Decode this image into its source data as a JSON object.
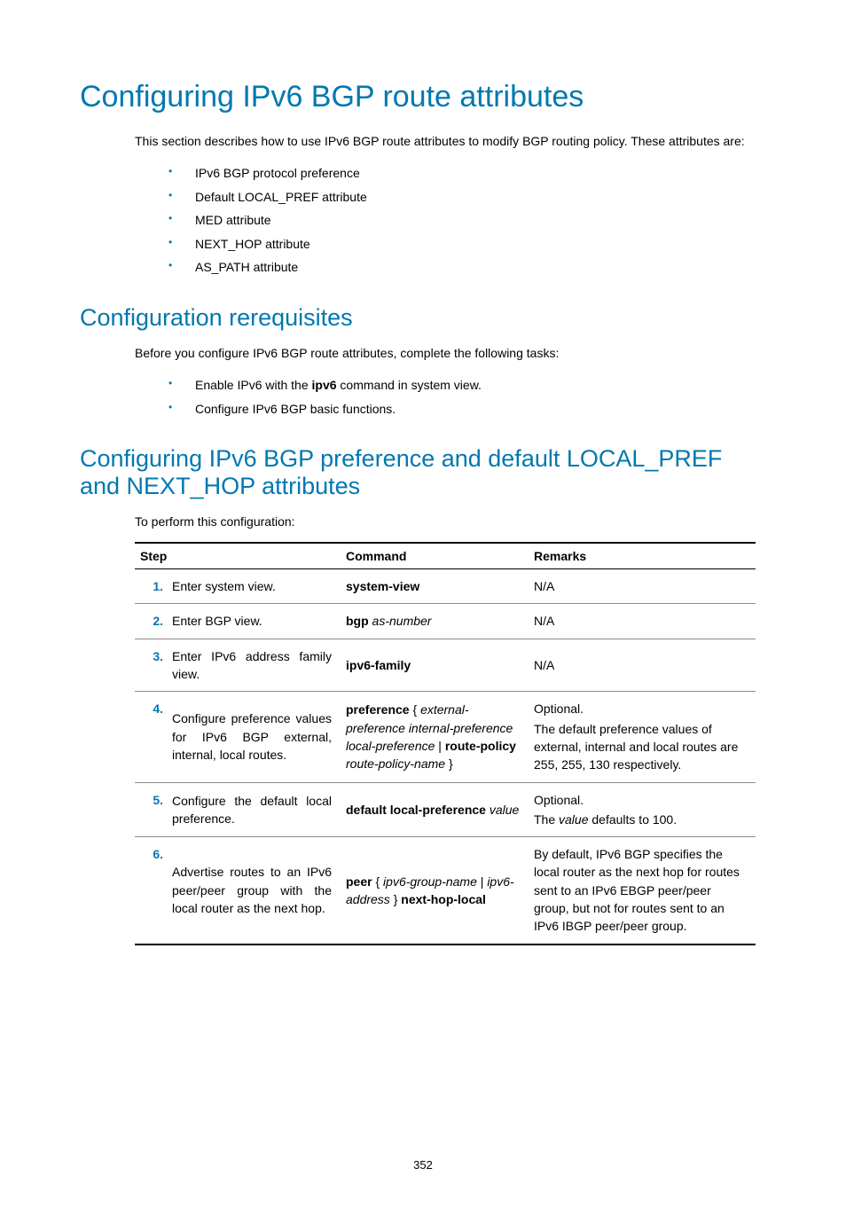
{
  "h1": "Configuring IPv6 BGP route attributes",
  "intro": "This section describes how to use IPv6 BGP route attributes to modify BGP routing policy. These attributes are:",
  "attrs": {
    "b1": "IPv6 BGP protocol preference",
    "b2": "Default LOCAL_PREF attribute",
    "b3": "MED attribute",
    "b4": "NEXT_HOP attribute",
    "b5": "AS_PATH attribute"
  },
  "h2_prereq": "Configuration rerequisites",
  "prereq_intro": "Before you configure IPv6 BGP route attributes, complete the following tasks:",
  "prereq": {
    "b1_pre": "Enable IPv6 with the ",
    "b1_bold": "ipv6",
    "b1_post": " command in system view.",
    "b2": "Configure IPv6 BGP basic functions."
  },
  "h2_pref": "Configuring IPv6 BGP preference and default LOCAL_PREF and NEXT_HOP attributes",
  "perform": "To perform this configuration:",
  "thead": {
    "step": "Step",
    "cmd": "Command",
    "rem": "Remarks"
  },
  "rows": {
    "r1": {
      "n": "1.",
      "step": "Enter system view.",
      "cmd_b": "system-view",
      "rem": "N/A"
    },
    "r2": {
      "n": "2.",
      "step": "Enter BGP view.",
      "cmd_b": "bgp",
      "cmd_i": " as-number",
      "rem": "N/A"
    },
    "r3": {
      "n": "3.",
      "step": "Enter IPv6 address family view.",
      "cmd_b": "ipv6-family",
      "rem": "N/A"
    },
    "r4": {
      "n": "4.",
      "step": "Configure preference values for IPv6 BGP external, internal, local routes.",
      "cmd_b1": "preference",
      "cmd_t1": " { ",
      "cmd_i1": "external-preference internal-preference local-preference",
      "cmd_t2": " | ",
      "cmd_b2": "route-policy",
      "cmd_t3": " ",
      "cmd_i2": "route-policy-name",
      "cmd_t4": " }",
      "rem1": "Optional.",
      "rem2": "The default preference values of external, internal and local routes are 255, 255, 130 respectively."
    },
    "r5": {
      "n": "5.",
      "step": "Configure the default local preference.",
      "cmd_b": "default local-preference",
      "cmd_i": " value",
      "rem1": "Optional.",
      "rem2a": "The ",
      "rem2i": "value",
      "rem2b": " defaults to 100."
    },
    "r6": {
      "n": "6.",
      "step": "Advertise routes to an IPv6 peer/peer group with the local router as the next hop.",
      "cmd_b1": "peer",
      "cmd_t1": " { ",
      "cmd_i1": "ipv6-group-name",
      "cmd_t2": " | ",
      "cmd_i2": "ipv6-address",
      "cmd_t3": " } ",
      "cmd_b2": "next-hop-local",
      "rem": "By default, IPv6 BGP specifies the local router as the next hop for routes sent to an IPv6 EBGP peer/peer group, but not for routes sent to an IPv6 IBGP peer/peer group."
    }
  },
  "pagenum": "352"
}
